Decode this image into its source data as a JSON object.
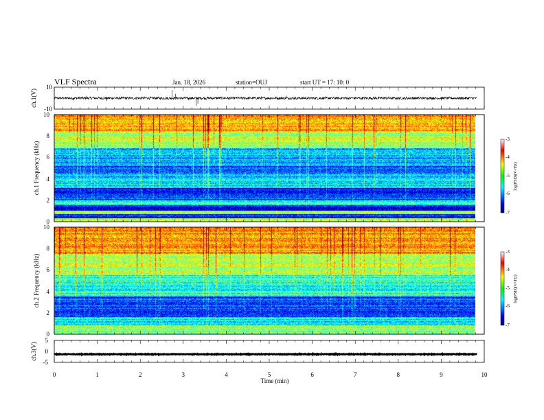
{
  "header": {
    "title": "VLF Spectra",
    "date": "Jan. 18, 2026",
    "station": "station=OUJ",
    "start_ut": "start UT =  17: 10: 0"
  },
  "chart_data": [
    {
      "id": "ch1_waveform",
      "type": "line",
      "ylabel": "ch.1(V)",
      "ylim": [
        -10,
        10
      ],
      "ytick_labels": [
        "10",
        "-10"
      ],
      "baseline": 0,
      "noise_amplitude": 1.2,
      "spikes": [
        {
          "t": 0.45,
          "v": -2.2
        },
        {
          "t": 0.75,
          "v": 2.0
        },
        {
          "t": 1.22,
          "v": -2.5
        },
        {
          "t": 2.74,
          "v": 7.5
        },
        {
          "t": 2.82,
          "v": 4.0
        },
        {
          "t": 3.12,
          "v": -2.0
        },
        {
          "t": 3.3,
          "v": -7.0
        },
        {
          "t": 3.34,
          "v": -5.0
        },
        {
          "t": 5.4,
          "v": 2.2
        },
        {
          "t": 9.0,
          "v": -2.0
        }
      ]
    },
    {
      "id": "ch1_spectrogram",
      "type": "heatmap",
      "ylabel": "ch.1 Frequency (kHz)",
      "ylim": [
        0,
        10
      ],
      "ytick_labels": [
        "0",
        "2",
        "4",
        "6",
        "8",
        "10"
      ],
      "x_range_min": [
        0,
        9.83
      ],
      "colorbar": {
        "label": "log(PSD)(V²/Hz)",
        "range": [
          -7,
          -3
        ],
        "tick_labels": [
          "-3",
          "-4",
          "-5",
          "-6",
          "-7"
        ]
      },
      "bands": [
        {
          "f": [
            0.0,
            0.3
          ],
          "v": -4.7
        },
        {
          "f": [
            0.3,
            0.7
          ],
          "v": -6.4
        },
        {
          "f": [
            0.7,
            1.0
          ],
          "v": -4.9
        },
        {
          "f": [
            1.0,
            1.5
          ],
          "v": -6.6
        },
        {
          "f": [
            1.5,
            2.0
          ],
          "v": -5.3
        },
        {
          "f": [
            2.0,
            2.6
          ],
          "v": -6.2
        },
        {
          "f": [
            2.6,
            3.1
          ],
          "v": -6.6
        },
        {
          "f": [
            3.1,
            4.5
          ],
          "v": -5.6
        },
        {
          "f": [
            4.5,
            5.2
          ],
          "v": -6.2
        },
        {
          "f": [
            5.2,
            6.9
          ],
          "v": -5.8
        },
        {
          "f": [
            6.9,
            8.5
          ],
          "v": -4.8
        },
        {
          "f": [
            8.5,
            10.0
          ],
          "v": -4.2
        }
      ]
    },
    {
      "id": "ch2_spectrogram",
      "type": "heatmap",
      "ylabel": "ch.2 Frequency (kHz)",
      "ylim": [
        0,
        10
      ],
      "ytick_labels": [
        "0",
        "2",
        "4",
        "6",
        "8",
        "10"
      ],
      "x_range_min": [
        0,
        9.83
      ],
      "colorbar": {
        "label": "log(PSD)(V²/Hz)",
        "range": [
          -7,
          -3
        ],
        "tick_labels": [
          "-3",
          "-4",
          "-5",
          "-6",
          "-7"
        ]
      },
      "bands": [
        {
          "f": [
            0.0,
            0.8
          ],
          "v": -5.0
        },
        {
          "f": [
            0.8,
            1.6
          ],
          "v": -5.6
        },
        {
          "f": [
            1.6,
            3.5
          ],
          "v": -6.2
        },
        {
          "f": [
            3.5,
            5.5
          ],
          "v": -5.4
        },
        {
          "f": [
            5.5,
            7.5
          ],
          "v": -4.8
        },
        {
          "f": [
            7.5,
            10.0
          ],
          "v": -4.1
        }
      ]
    },
    {
      "id": "ch3_waveform",
      "type": "line",
      "ylabel": "ch.3(V)",
      "ylim": [
        -5,
        5
      ],
      "ytick_labels": [
        "5",
        "0",
        "-5"
      ],
      "baseline": -1.3,
      "noise_amplitude": 0.15,
      "xlabel": "Time (min)",
      "xlim": [
        0,
        10
      ],
      "xtick_labels": [
        "0",
        "1",
        "2",
        "3",
        "4",
        "5",
        "6",
        "7",
        "8",
        "9",
        "10"
      ]
    }
  ]
}
